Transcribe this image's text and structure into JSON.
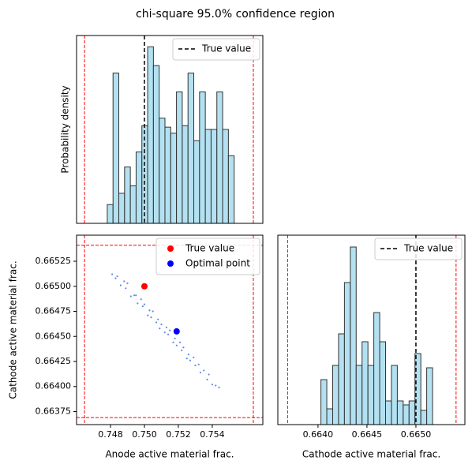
{
  "title": "chi-square 95.0% confidence region",
  "chart_data": [
    {
      "type": "histogram",
      "ylabel": "Probability density",
      "bins": [
        0.74781,
        0.74815,
        0.74849,
        0.74883,
        0.74917,
        0.74951,
        0.74985,
        0.75019,
        0.75053,
        0.75087,
        0.75121,
        0.75155,
        0.75189,
        0.75223,
        0.75257,
        0.75291,
        0.75325,
        0.75359,
        0.75393,
        0.75427,
        0.75461,
        0.75495,
        0.75529
      ],
      "values": [
        25,
        200,
        40,
        75,
        50,
        95,
        130,
        235,
        210,
        140,
        128,
        120,
        175,
        130,
        200,
        110,
        175,
        125,
        125,
        175,
        125,
        90
      ],
      "color": "#a6dcef",
      "edgecolor": "#333333",
      "xlim": [
        0.746,
        0.75698
      ],
      "ylim": [
        0,
        250
      ],
      "bounds": {
        "x": [
          0.74647,
          0.75642
        ],
        "color": "#ff0000"
      },
      "lines": [
        {
          "name": "True value",
          "x": 0.75,
          "color": "#000000"
        }
      ],
      "legend": "upper right"
    },
    {
      "type": "scatter",
      "xlabel": "Anode active material frac.",
      "ylabel": "Cathode active material frac.",
      "xlim": [
        0.746,
        0.75698
      ],
      "ylim": [
        0.66362,
        0.66551
      ],
      "xticks": [
        0.748,
        {
          "value": 0.75,
          "label": "0.750"
        },
        0.752,
        0.754
      ],
      "yticks": [
        0.66525,
        {
          "value": 0.665,
          "label": "0.66500"
        },
        0.66475,
        {
          "value": 0.6645,
          "label": "0.66450"
        },
        0.66425,
        {
          "value": 0.664,
          "label": "0.66400"
        },
        0.66375
      ],
      "bounds": {
        "x": [
          0.74647,
          0.75642
        ],
        "y": [
          0.66369,
          0.66541
        ],
        "color": "#ff0000"
      },
      "series": [
        {
          "color": "#4169e1",
          "x": [
            0.7481,
            0.7483,
            0.7484,
            0.7486,
            0.7488,
            0.7489,
            0.749,
            0.7492,
            0.7494,
            0.7495,
            0.7496,
            0.7498,
            0.7499,
            0.75,
            0.7502,
            0.7503,
            0.7504,
            0.7505,
            0.7507,
            0.7508,
            0.7509,
            0.751,
            0.7512,
            0.7513,
            0.7514,
            0.7515,
            0.7517,
            0.7518,
            0.7519,
            0.7521,
            0.7522,
            0.7523,
            0.7525,
            0.7526,
            0.7527,
            0.7529,
            0.753,
            0.7532,
            0.7533,
            0.7535,
            0.7537,
            0.7538,
            0.754,
            0.7542,
            0.7544
          ],
          "values": [
            0.66512,
            0.66508,
            0.6651,
            0.66501,
            0.66505,
            0.66498,
            0.66503,
            0.6649,
            0.66491,
            0.66491,
            0.66483,
            0.66487,
            0.6648,
            0.66482,
            0.66471,
            0.66476,
            0.66469,
            0.66475,
            0.66464,
            0.66467,
            0.66458,
            0.66462,
            0.66454,
            0.66459,
            0.66452,
            0.66456,
            0.66444,
            0.66448,
            0.66441,
            0.66444,
            0.66436,
            0.66439,
            0.66428,
            0.66432,
            0.66426,
            0.66429,
            0.66421,
            0.66422,
            0.66414,
            0.66416,
            0.66407,
            0.66412,
            0.66402,
            0.66401,
            0.66399
          ]
        },
        {
          "name": "True value",
          "color": "#ff0000",
          "x": [
            0.75
          ],
          "values": [
            0.665
          ]
        },
        {
          "name": "Optimal point",
          "color": "#0000ff",
          "x": [
            0.7519
          ],
          "values": [
            0.66455
          ]
        }
      ],
      "legend": "upper right"
    },
    {
      "type": "histogram",
      "xlabel": "Cathode active material frac.",
      "bins": [
        0.66403,
        0.66409,
        0.66415,
        0.66421,
        0.66427,
        0.66433,
        0.66439,
        0.66445,
        0.66451,
        0.66457,
        0.66463,
        0.66469,
        0.66475,
        0.66481,
        0.66487,
        0.66493,
        0.66499,
        0.66505,
        0.66511,
        0.66517
      ],
      "values": [
        57,
        20,
        75,
        115,
        180,
        225,
        75,
        105,
        75,
        142,
        105,
        30,
        75,
        30,
        25,
        30,
        90,
        18,
        72
      ],
      "color": "#a6dcef",
      "edgecolor": "#333333",
      "xlim": [
        0.66359,
        0.6655
      ],
      "ylim": [
        0,
        240
      ],
      "xticks": [
        {
          "value": 0.664,
          "label": "0.6640"
        },
        0.6645,
        {
          "value": 0.665,
          "label": "0.6650"
        }
      ],
      "bounds": {
        "x": [
          0.66369,
          0.66541
        ],
        "color": "#ff0000"
      },
      "lines": [
        {
          "name": "True value",
          "x": 0.665,
          "color": "#000000"
        }
      ],
      "legend": "upper right"
    }
  ]
}
